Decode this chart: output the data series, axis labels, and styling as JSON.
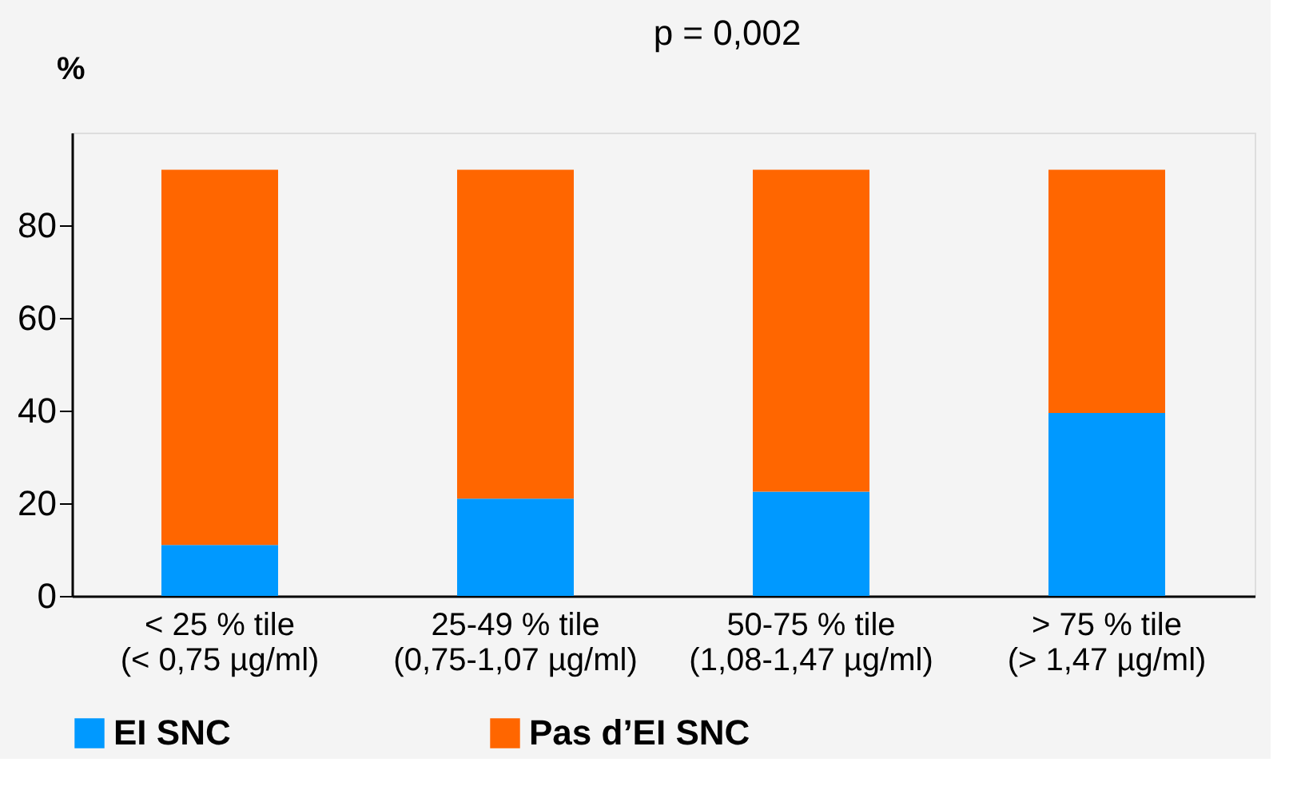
{
  "chart_data": {
    "type": "bar",
    "title": "p = 0,002",
    "ylabel": "%",
    "stacked": true,
    "categories": [
      "< 25 % tile\n(< 0,75 µg/ml)",
      "25-49 % tile\n(0,75-1,07 µg/ml)",
      "50-75 % tile\n(1,08-1,47 µg/ml)",
      "> 75 % tile\n(> 1,47 µg/ml)"
    ],
    "series": [
      {
        "name": "EI SNC",
        "color": "#0099ff",
        "values": [
          11,
          21,
          22.5,
          39.5
        ]
      },
      {
        "name": "Pas d’EI SNC",
        "color": "#ff6600",
        "values": [
          81,
          71,
          69.5,
          52.5
        ]
      }
    ],
    "ylim": [
      0,
      100
    ],
    "yticks": [
      0,
      20,
      40,
      60,
      80
    ],
    "grid": false,
    "legend": "bottom"
  }
}
